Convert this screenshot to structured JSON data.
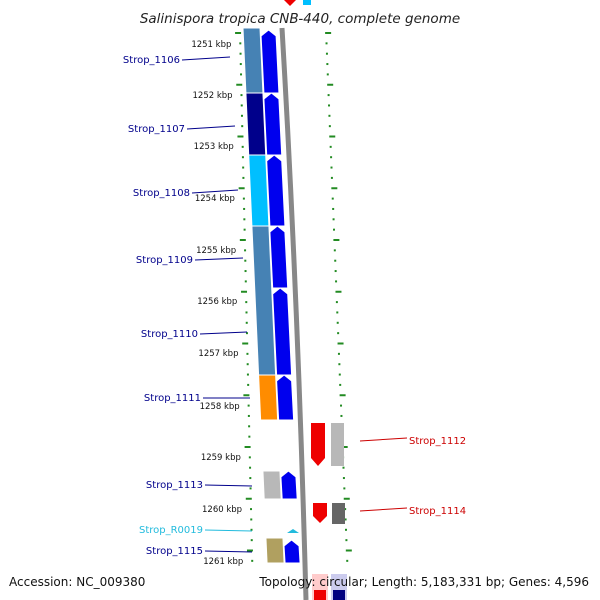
{
  "title": "Salinispora tropica CNB-440, complete genome",
  "footer": {
    "accession": "Accession: NC_009380",
    "topology": "Topology: circular; Length: 5,183,331 bp; Genes: 4,596"
  },
  "scale_ticks": [
    "1251 kbp",
    "1252 kbp",
    "1253 kbp",
    "1254 kbp",
    "1255 kbp",
    "1256 kbp",
    "1257 kbp",
    "1258 kbp",
    "1259 kbp",
    "1260 kbp",
    "1261 kbp"
  ],
  "genes_left": [
    {
      "name": "Strop_1106",
      "color": "#00008b"
    },
    {
      "name": "Strop_1107",
      "color": "#00008b"
    },
    {
      "name": "Strop_1108",
      "color": "#00008b"
    },
    {
      "name": "Strop_1109",
      "color": "#00008b"
    },
    {
      "name": "Strop_1110",
      "color": "#00008b"
    },
    {
      "name": "Strop_1111",
      "color": "#00008b"
    },
    {
      "name": "Strop_1113",
      "color": "#00008b"
    },
    {
      "name": "Strop_R0019",
      "color": "#22bbdd"
    },
    {
      "name": "Strop_1115",
      "color": "#00008b"
    }
  ],
  "genes_right": [
    {
      "name": "Strop_1112",
      "color": "#cc0000"
    },
    {
      "name": "Strop_1114",
      "color": "#cc0000"
    }
  ],
  "colors": {
    "forward_arrow": "#0000ee",
    "reverse_arrow": "#ee0000",
    "steelblue": "#4682b4",
    "navy": "#00008b",
    "deepskyblue": "#00bfff",
    "orange": "#ff8c00",
    "silver": "#b8b8b8",
    "darkgray": "#666666",
    "khaki": "#b0a060",
    "backbone": "#888888",
    "tick_green": "#228b22"
  }
}
